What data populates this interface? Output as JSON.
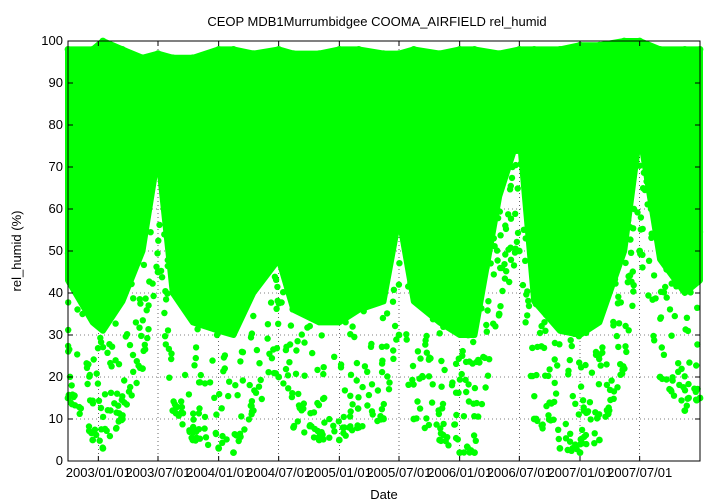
{
  "chart_data": {
    "type": "scatter",
    "title": "CEOP MDB1Murrumbidgee COOMA_AIRFIELD  rel_humid",
    "xlabel": "Date",
    "ylabel": "rel_humid (%)",
    "xlim": [
      "2002-10-01",
      "2007-12-31"
    ],
    "ylim": [
      0,
      100
    ],
    "yticks": [
      0,
      10,
      20,
      30,
      40,
      50,
      60,
      70,
      80,
      90,
      100
    ],
    "xticks": [
      {
        "date": "2003-01-01",
        "label": "2003/01/01"
      },
      {
        "date": "2003-07-01",
        "label": "2003/07/01"
      },
      {
        "date": "2004-01-01",
        "label": "2004/01/01"
      },
      {
        "date": "2004-07-01",
        "label": "2004/07/01"
      },
      {
        "date": "2005-01-01",
        "label": "2005/01/01"
      },
      {
        "date": "2005-07-01",
        "label": "2005/07/01"
      },
      {
        "date": "2006-01-01",
        "label": "2006/01/01"
      },
      {
        "date": "2006-07-01",
        "label": "2006/07/01"
      },
      {
        "date": "2007-01-01",
        "label": "2007/01/01"
      },
      {
        "date": "2007-07-01",
        "label": "2007/07/01"
      }
    ],
    "grid": true,
    "series": [
      {
        "color": "#00ff00",
        "envelope": [
          {
            "date": "2002-10-01",
            "min": 15,
            "max": 98
          },
          {
            "date": "2002-12-15",
            "min": 5,
            "max": 98
          },
          {
            "date": "2003-01-15",
            "min": 3,
            "max": 100
          },
          {
            "date": "2003-03-15",
            "min": 10,
            "max": 98
          },
          {
            "date": "2003-05-15",
            "min": 22,
            "max": 96
          },
          {
            "date": "2003-07-01",
            "min": 45,
            "max": 97
          },
          {
            "date": "2003-08-15",
            "min": 12,
            "max": 96
          },
          {
            "date": "2003-10-15",
            "min": 5,
            "max": 96
          },
          {
            "date": "2004-01-01",
            "min": 3,
            "max": 98
          },
          {
            "date": "2004-02-15",
            "min": 2,
            "max": 98
          },
          {
            "date": "2004-04-15",
            "min": 12,
            "max": 97
          },
          {
            "date": "2004-07-01",
            "min": 20,
            "max": 98
          },
          {
            "date": "2004-08-15",
            "min": 8,
            "max": 97
          },
          {
            "date": "2004-11-01",
            "min": 5,
            "max": 97
          },
          {
            "date": "2005-01-01",
            "min": 5,
            "max": 98
          },
          {
            "date": "2005-03-01",
            "min": 8,
            "max": 98
          },
          {
            "date": "2005-05-15",
            "min": 10,
            "max": 97
          },
          {
            "date": "2005-07-01",
            "min": 30,
            "max": 97
          },
          {
            "date": "2005-08-15",
            "min": 10,
            "max": 98
          },
          {
            "date": "2005-11-01",
            "min": 5,
            "max": 97
          },
          {
            "date": "2006-01-01",
            "min": 2,
            "max": 98
          },
          {
            "date": "2006-02-15",
            "min": 2,
            "max": 98
          },
          {
            "date": "2006-05-01",
            "min": 35,
            "max": 97
          },
          {
            "date": "2006-07-01",
            "min": 50,
            "max": 98
          },
          {
            "date": "2006-08-15",
            "min": 10,
            "max": 98
          },
          {
            "date": "2006-11-01",
            "min": 3,
            "max": 98
          },
          {
            "date": "2007-01-01",
            "min": 2,
            "max": 99
          },
          {
            "date": "2007-03-01",
            "min": 5,
            "max": 99
          },
          {
            "date": "2007-05-15",
            "min": 22,
            "max": 100
          },
          {
            "date": "2007-07-01",
            "min": 50,
            "max": 100
          },
          {
            "date": "2007-09-01",
            "min": 20,
            "max": 98
          },
          {
            "date": "2007-11-15",
            "min": 12,
            "max": 98
          },
          {
            "date": "2007-12-31",
            "min": 15,
            "max": 98
          }
        ]
      }
    ]
  }
}
